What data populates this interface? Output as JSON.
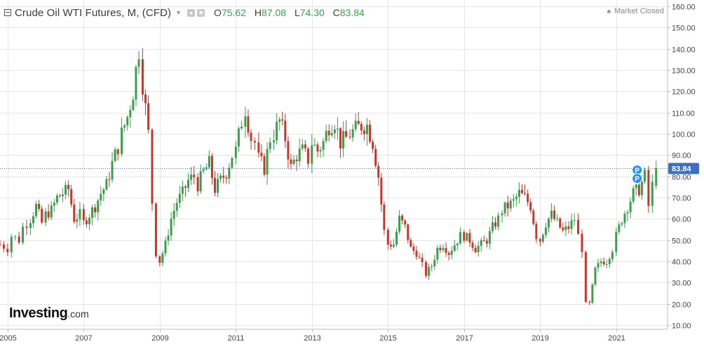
{
  "header": {
    "title": "Crude Oil WTI Futures, M, (CFD)",
    "ohlc": [
      {
        "key": "O",
        "value": "75.62"
      },
      {
        "key": "H",
        "value": "87.08"
      },
      {
        "key": "L",
        "value": "74.30"
      },
      {
        "key": "C",
        "value": "83.84"
      }
    ],
    "market_status": "Market Closed"
  },
  "logo": {
    "brand": "Investing",
    "suffix": ".com"
  },
  "colors": {
    "up": "#3a9e4a",
    "down": "#c0392b",
    "last_price_line": "#3a6fc4",
    "last_price_badge": "#3a6fc4",
    "grid": "#e6e6e6",
    "marker": "#2196f3"
  },
  "chart_data": {
    "type": "candlestick",
    "title": "Crude Oil WTI Futures, M, (CFD)",
    "interval": "monthly",
    "xlim": [
      2004.8,
      2022.35
    ],
    "ylim": [
      8,
      163
    ],
    "y_ticks": [
      "10.00",
      "20.00",
      "30.00",
      "40.00",
      "50.00",
      "60.00",
      "70.00",
      "80.00",
      "90.00",
      "100.00",
      "110.00",
      "120.00",
      "130.00",
      "140.00",
      "150.00",
      "160.00"
    ],
    "x_ticks": [
      "2005",
      "2007",
      "2009",
      "2011",
      "2013",
      "2015",
      "2017",
      "2019",
      "2021"
    ],
    "last_price": 83.84,
    "last_price_label": "83.84",
    "markers": [
      {
        "date": 2021.55,
        "price": 83,
        "label": "P"
      },
      {
        "date": 2021.55,
        "price": 79,
        "label": "P"
      }
    ],
    "grid": true,
    "closes": [
      [
        2004.8,
        48
      ],
      [
        2005.0,
        46
      ],
      [
        2005.1,
        52
      ],
      [
        2005.3,
        50
      ],
      [
        2005.4,
        56
      ],
      [
        2005.6,
        60
      ],
      [
        2005.75,
        66
      ],
      [
        2005.9,
        58
      ],
      [
        2006.0,
        62
      ],
      [
        2006.15,
        64
      ],
      [
        2006.3,
        70
      ],
      [
        2006.45,
        72
      ],
      [
        2006.6,
        74
      ],
      [
        2006.75,
        60
      ],
      [
        2006.9,
        62
      ],
      [
        2007.0,
        58
      ],
      [
        2007.15,
        62
      ],
      [
        2007.3,
        66
      ],
      [
        2007.45,
        72
      ],
      [
        2007.6,
        76
      ],
      [
        2007.75,
        86
      ],
      [
        2007.9,
        94
      ],
      [
        2008.0,
        100
      ],
      [
        2008.15,
        108
      ],
      [
        2008.3,
        120
      ],
      [
        2008.45,
        140
      ],
      [
        2008.55,
        124
      ],
      [
        2008.7,
        100
      ],
      [
        2008.8,
        68
      ],
      [
        2008.9,
        44
      ],
      [
        2009.0,
        40
      ],
      [
        2009.15,
        48
      ],
      [
        2009.3,
        60
      ],
      [
        2009.45,
        68
      ],
      [
        2009.6,
        72
      ],
      [
        2009.75,
        78
      ],
      [
        2009.9,
        80
      ],
      [
        2010.0,
        76
      ],
      [
        2010.15,
        82
      ],
      [
        2010.3,
        86
      ],
      [
        2010.45,
        74
      ],
      [
        2010.6,
        78
      ],
      [
        2010.75,
        82
      ],
      [
        2010.9,
        90
      ],
      [
        2011.0,
        92
      ],
      [
        2011.15,
        106
      ],
      [
        2011.25,
        112
      ],
      [
        2011.4,
        98
      ],
      [
        2011.5,
        96
      ],
      [
        2011.6,
        88
      ],
      [
        2011.75,
        84
      ],
      [
        2011.9,
        98
      ],
      [
        2012.0,
        100
      ],
      [
        2012.15,
        106
      ],
      [
        2012.3,
        98
      ],
      [
        2012.45,
        84
      ],
      [
        2012.6,
        90
      ],
      [
        2012.75,
        92
      ],
      [
        2012.9,
        88
      ],
      [
        2013.0,
        96
      ],
      [
        2013.15,
        92
      ],
      [
        2013.3,
        96
      ],
      [
        2013.45,
        104
      ],
      [
        2013.6,
        106
      ],
      [
        2013.75,
        96
      ],
      [
        2013.9,
        98
      ],
      [
        2014.0,
        100
      ],
      [
        2014.15,
        102
      ],
      [
        2014.3,
        104
      ],
      [
        2014.45,
        104
      ],
      [
        2014.6,
        96
      ],
      [
        2014.75,
        80
      ],
      [
        2014.9,
        54
      ],
      [
        2015.0,
        48
      ],
      [
        2015.15,
        48
      ],
      [
        2015.3,
        60
      ],
      [
        2015.45,
        56
      ],
      [
        2015.6,
        46
      ],
      [
        2015.75,
        44
      ],
      [
        2015.9,
        38
      ],
      [
        2016.0,
        34
      ],
      [
        2016.15,
        38
      ],
      [
        2016.3,
        46
      ],
      [
        2016.45,
        48
      ],
      [
        2016.6,
        44
      ],
      [
        2016.75,
        48
      ],
      [
        2016.9,
        52
      ],
      [
        2017.0,
        52
      ],
      [
        2017.15,
        50
      ],
      [
        2017.3,
        46
      ],
      [
        2017.45,
        48
      ],
      [
        2017.6,
        50
      ],
      [
        2017.75,
        56
      ],
      [
        2017.9,
        60
      ],
      [
        2018.0,
        64
      ],
      [
        2018.15,
        66
      ],
      [
        2018.3,
        68
      ],
      [
        2018.45,
        72
      ],
      [
        2018.6,
        70
      ],
      [
        2018.75,
        66
      ],
      [
        2018.9,
        52
      ],
      [
        2019.0,
        50
      ],
      [
        2019.15,
        58
      ],
      [
        2019.3,
        62
      ],
      [
        2019.45,
        58
      ],
      [
        2019.6,
        54
      ],
      [
        2019.75,
        56
      ],
      [
        2019.9,
        60
      ],
      [
        2020.0,
        52
      ],
      [
        2020.1,
        46
      ],
      [
        2020.2,
        20
      ],
      [
        2020.3,
        20
      ],
      [
        2020.45,
        36
      ],
      [
        2020.6,
        40
      ],
      [
        2020.75,
        40
      ],
      [
        2020.9,
        46
      ],
      [
        2021.0,
        52
      ],
      [
        2021.15,
        60
      ],
      [
        2021.3,
        66
      ],
      [
        2021.45,
        72
      ],
      [
        2021.6,
        74
      ],
      [
        2021.75,
        80
      ],
      [
        2021.85,
        66
      ],
      [
        2021.95,
        75.62
      ],
      [
        2022.05,
        83.84
      ]
    ]
  }
}
